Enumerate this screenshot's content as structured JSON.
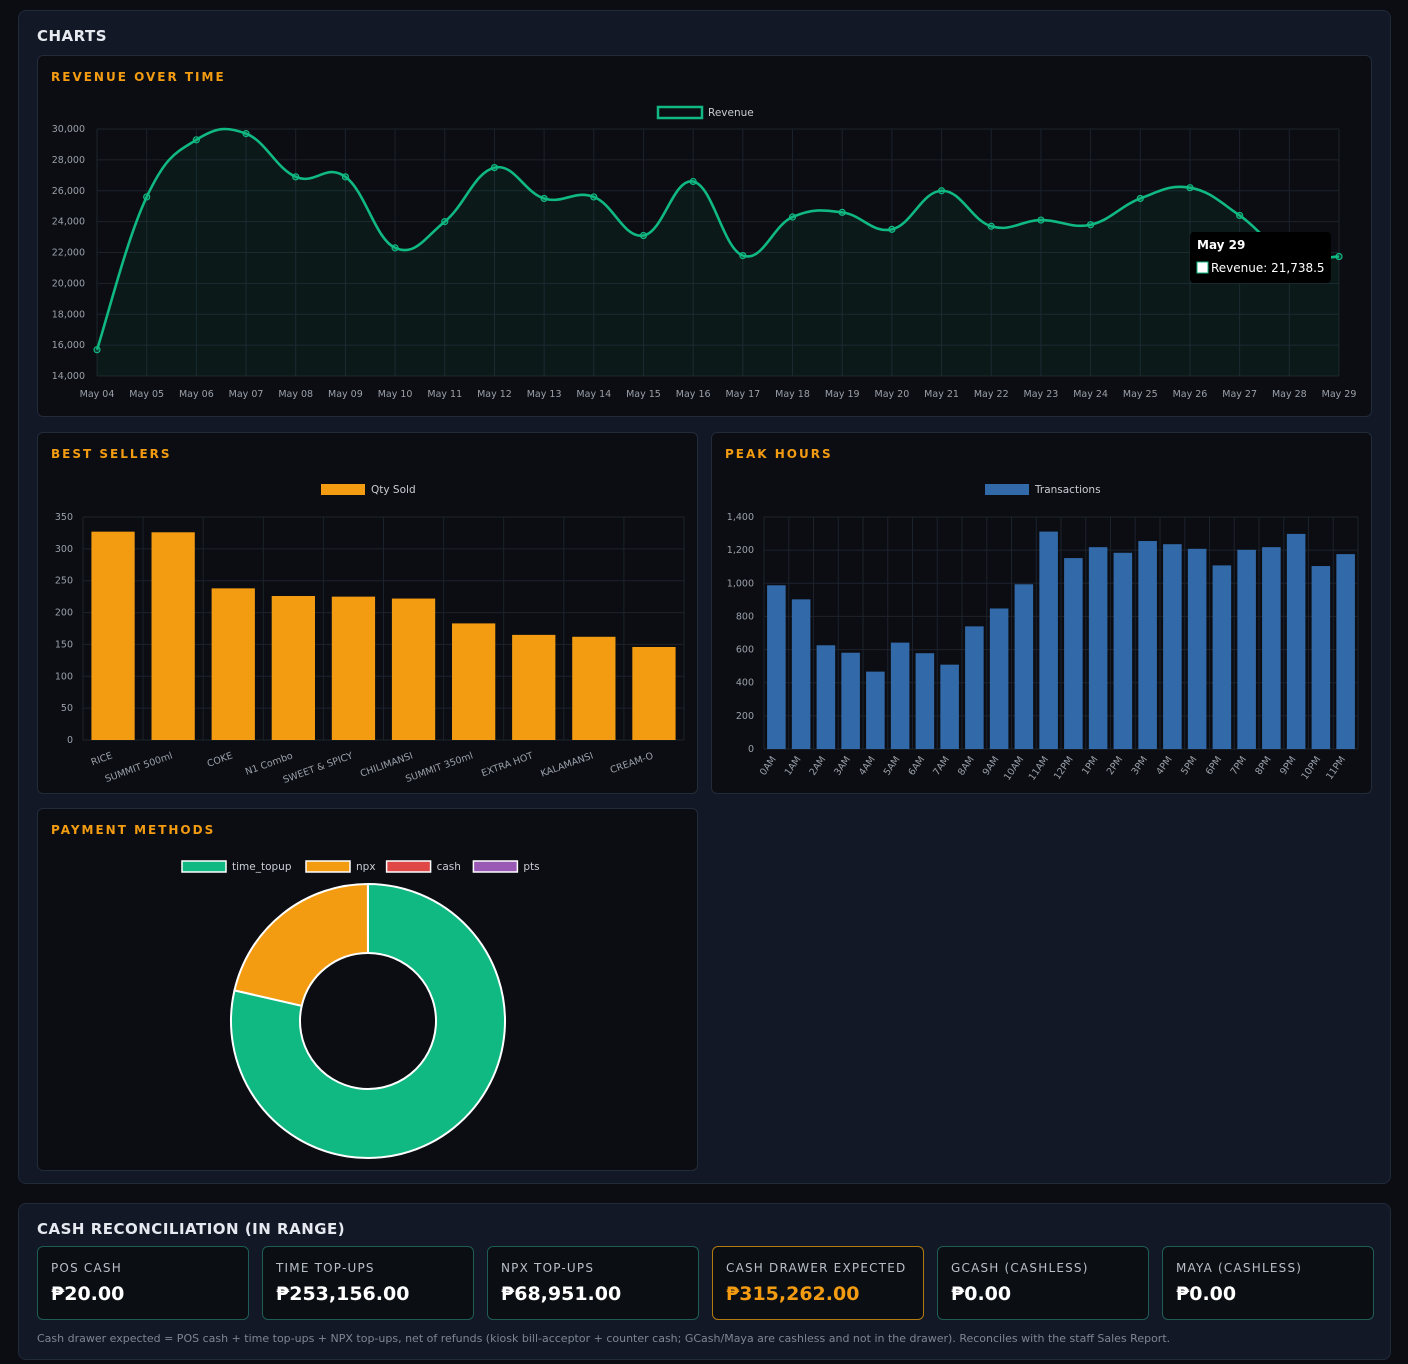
{
  "charts_section": {
    "title": "CHARTS"
  },
  "revenue": {
    "title": "REVENUE OVER TIME",
    "legend": "Revenue",
    "color": "#10b981",
    "tooltip": {
      "title": "May 29",
      "label": "Revenue: 21,738.5"
    },
    "chart_data": {
      "type": "line",
      "categories": [
        "May 04",
        "May 05",
        "May 06",
        "May 07",
        "May 08",
        "May 09",
        "May 10",
        "May 11",
        "May 12",
        "May 13",
        "May 14",
        "May 15",
        "May 16",
        "May 17",
        "May 18",
        "May 19",
        "May 20",
        "May 21",
        "May 22",
        "May 23",
        "May 24",
        "May 25",
        "May 26",
        "May 27",
        "May 28",
        "May 29"
      ],
      "series": [
        {
          "name": "Revenue",
          "values": [
            15700,
            25600,
            29300,
            29700,
            26900,
            26900,
            22300,
            24000,
            27500,
            25500,
            25600,
            23100,
            26600,
            21800,
            24300,
            24600,
            23500,
            26000,
            23700,
            24100,
            23800,
            25500,
            26200,
            24400,
            21800,
            21738.5
          ]
        }
      ],
      "ylim": [
        14000,
        30000
      ],
      "yticks": [
        "14,000",
        "16,000",
        "18,000",
        "20,000",
        "22,000",
        "24,000",
        "26,000",
        "28,000",
        "30,000"
      ],
      "grid": true,
      "legend_position": "top"
    }
  },
  "best_sellers": {
    "title": "BEST SELLERS",
    "legend": "Qty Sold",
    "color": "#f39c12",
    "chart_data": {
      "type": "bar",
      "categories": [
        "RICE",
        "SUMMIT 500ml",
        "COKE",
        "N1 Combo",
        "SWEET & SPICY",
        "CHILIMANSI",
        "SUMMIT 350ml",
        "EXTRA HOT",
        "KALAMANSI",
        "CREAM-O"
      ],
      "series": [
        {
          "name": "Qty Sold",
          "values": [
            327,
            326,
            238,
            226,
            225,
            222,
            183,
            165,
            162,
            146
          ]
        }
      ],
      "ylim": [
        0,
        350
      ],
      "yticks": [
        "0",
        "50",
        "100",
        "150",
        "200",
        "250",
        "300",
        "350"
      ],
      "grid": true,
      "legend_position": "top"
    }
  },
  "peak_hours": {
    "title": "PEAK HOURS",
    "legend": "Transactions",
    "color": "#3269a8",
    "chart_data": {
      "type": "bar",
      "categories": [
        "0AM",
        "1AM",
        "2AM",
        "3AM",
        "4AM",
        "5AM",
        "6AM",
        "7AM",
        "8AM",
        "9AM",
        "10AM",
        "11AM",
        "12PM",
        "1PM",
        "2PM",
        "3PM",
        "4PM",
        "5PM",
        "6PM",
        "7PM",
        "8PM",
        "9PM",
        "10PM",
        "11PM"
      ],
      "series": [
        {
          "name": "Transactions",
          "values": [
            988,
            903,
            626,
            581,
            467,
            642,
            578,
            509,
            740,
            848,
            994,
            1312,
            1152,
            1218,
            1184,
            1255,
            1236,
            1208,
            1108,
            1202,
            1218,
            1298,
            1104,
            1176
          ]
        }
      ],
      "ylim": [
        0,
        1400
      ],
      "yticks": [
        "0",
        "200",
        "400",
        "600",
        "800",
        "1,000",
        "1,200",
        "1,400"
      ],
      "grid": true,
      "legend_position": "top"
    }
  },
  "payment_methods": {
    "title": "PAYMENT METHODS",
    "chart_data": {
      "type": "pie",
      "style": "doughnut",
      "labels": [
        "time_topup",
        "npx",
        "cash",
        "pts"
      ],
      "values": [
        253156,
        68951,
        20,
        0
      ],
      "colors": [
        "#10b981",
        "#f39c12",
        "#e04848",
        "#9b59b6"
      ],
      "legend_position": "top"
    }
  },
  "cash_recon": {
    "title": "CASH RECONCILIATION (IN RANGE)",
    "stats": [
      {
        "label": "POS CASH",
        "value": "₱20.00"
      },
      {
        "label": "TIME TOP-UPS",
        "value": "₱253,156.00"
      },
      {
        "label": "NPX TOP-UPS",
        "value": "₱68,951.00"
      },
      {
        "label": "CASH DRAWER EXPECTED",
        "value": "₱315,262.00"
      },
      {
        "label": "GCASH (CASHLESS)",
        "value": "₱0.00"
      },
      {
        "label": "MAYA (CASHLESS)",
        "value": "₱0.00"
      }
    ],
    "note": "Cash drawer expected = POS cash + time top-ups + NPX top-ups, net of refunds (kiosk bill-acceptor + counter cash; GCash/Maya are cashless and not in the drawer). Reconciles with the staff Sales Report."
  }
}
